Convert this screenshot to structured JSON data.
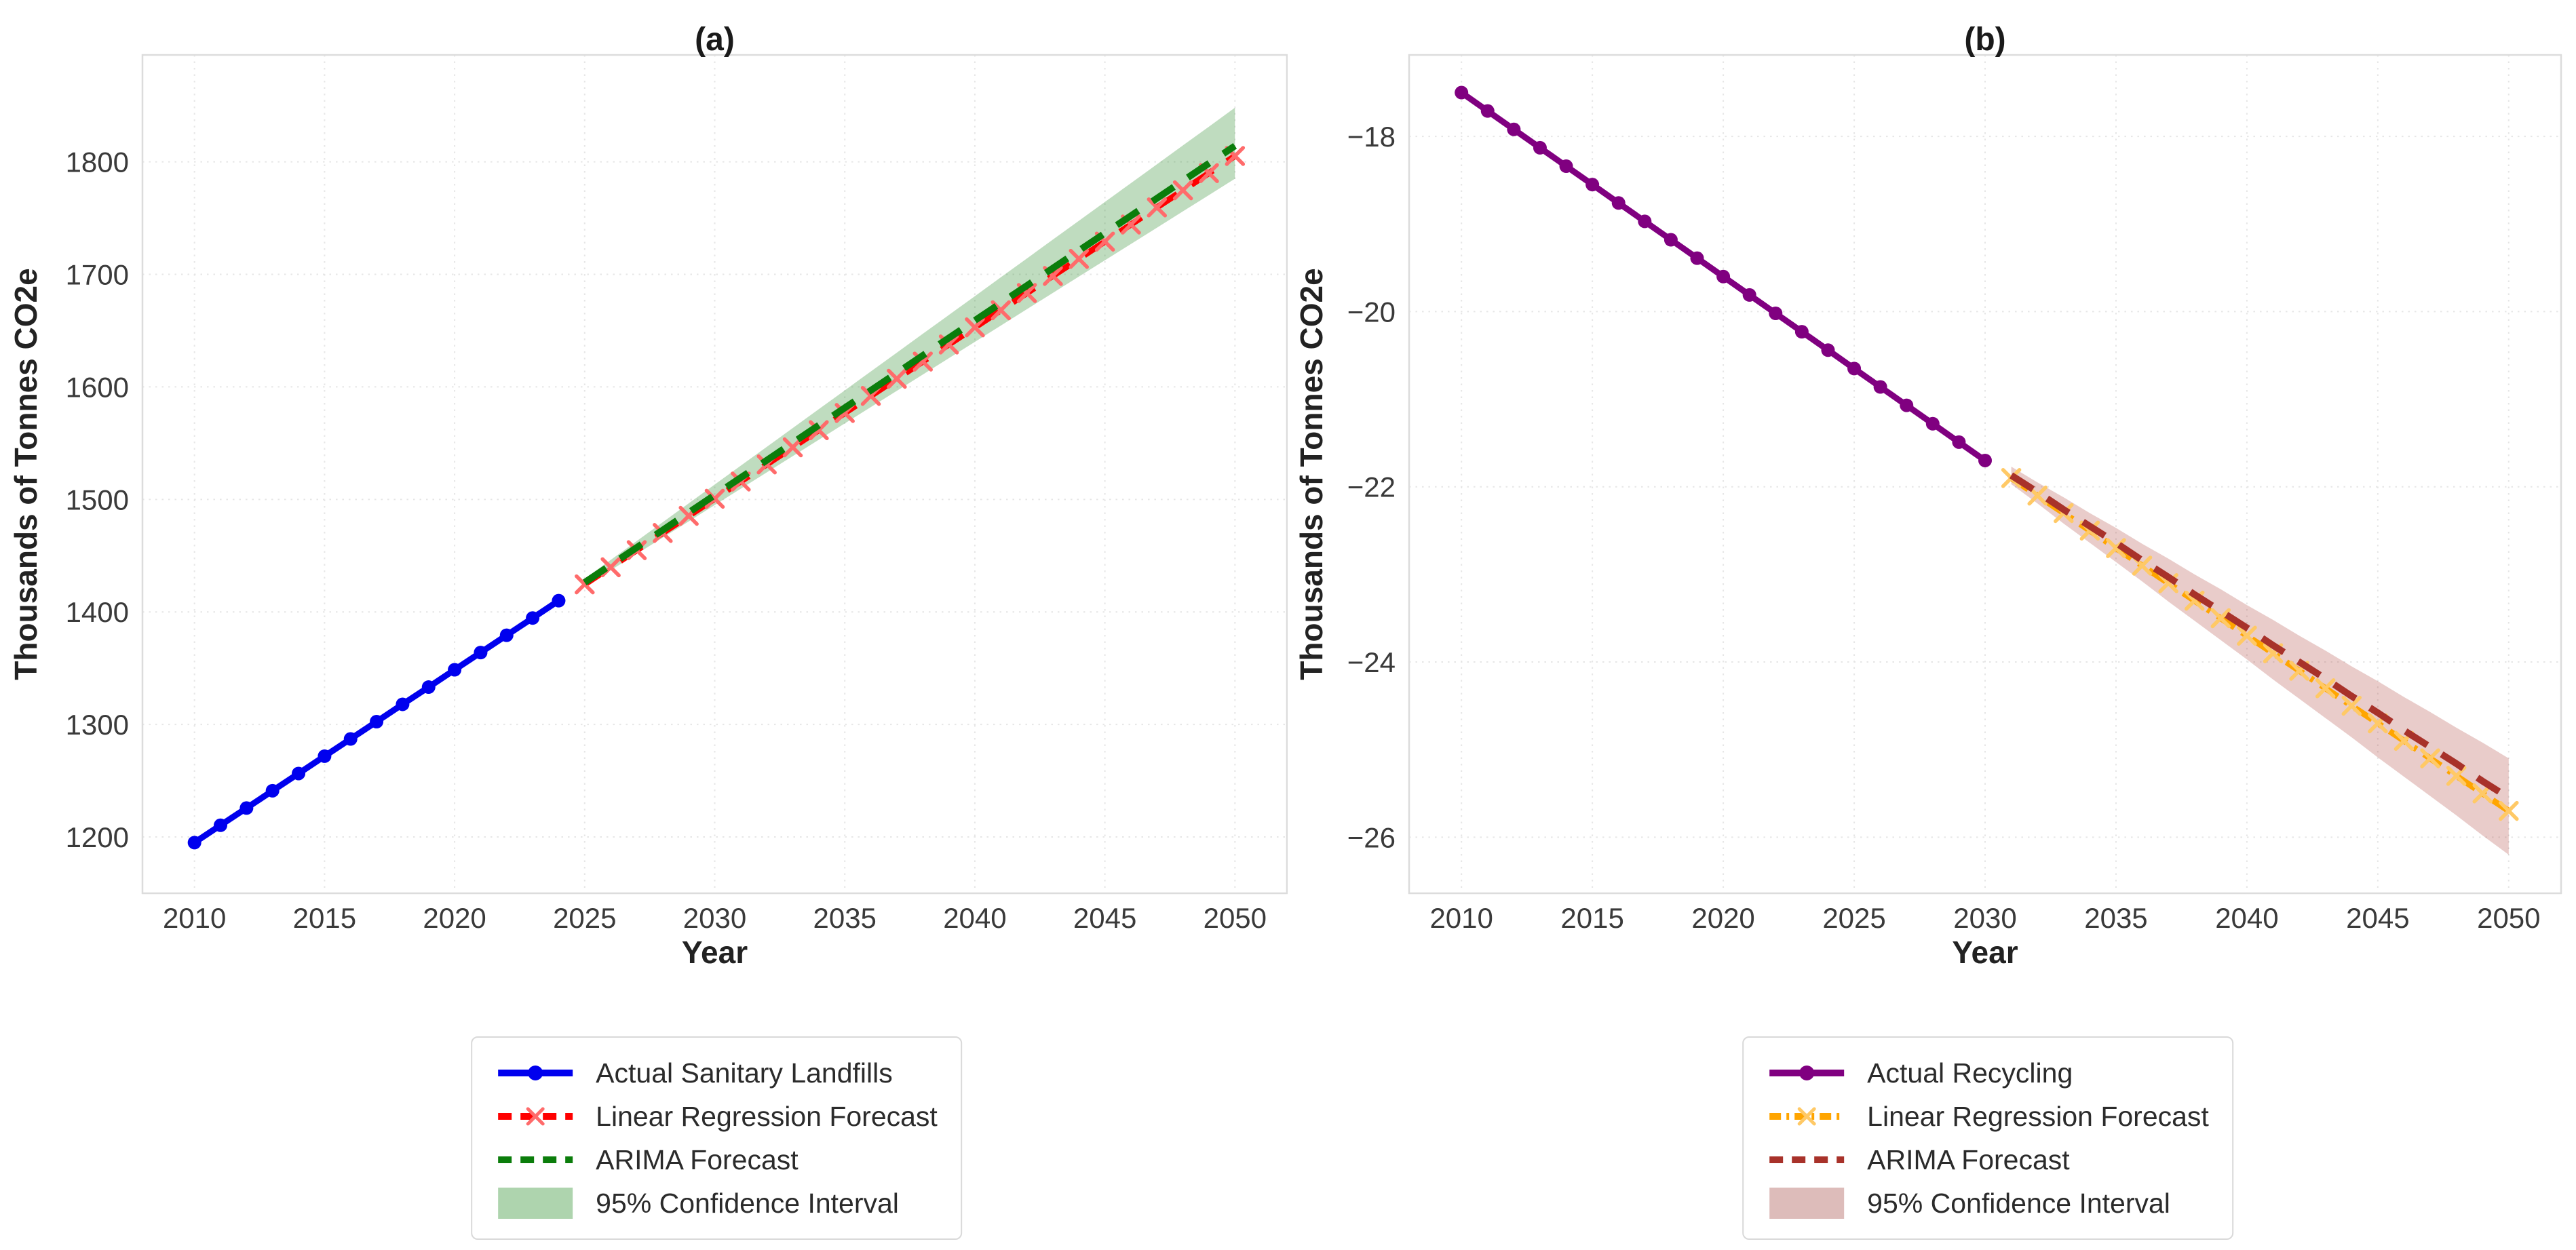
{
  "figure": {
    "background": "#ffffff",
    "grid_color": "#e6e6e6",
    "spine_color": "#dcdcdc",
    "title_color": "#1a1a1a",
    "tick_color": "#3a3a3a",
    "label_color": "#222222"
  },
  "chart_data": [
    {
      "type": "line",
      "title": "(a)",
      "xlabel": "Year",
      "ylabel": "Thousands of Tonnes CO2e",
      "xlim": [
        2008,
        2052
      ],
      "ylim": [
        1150,
        1895
      ],
      "grid": "dotted",
      "legend_position": "below-center",
      "xticks": [
        2010,
        2015,
        2020,
        2025,
        2030,
        2035,
        2040,
        2045,
        2050
      ],
      "yticks": [
        {
          "v": 1200,
          "label": "1200"
        },
        {
          "v": 1300,
          "label": "1300"
        },
        {
          "v": 1400,
          "label": "1400"
        },
        {
          "v": 1500,
          "label": "1500"
        },
        {
          "v": 1600,
          "label": "1600"
        },
        {
          "v": 1700,
          "label": "1700"
        },
        {
          "v": 1800,
          "label": "1800"
        }
      ],
      "series": [
        {
          "name": "Actual Sanitary Landfills",
          "color": "#0000ee",
          "style": "solid",
          "marker": "circle",
          "marker_color": "#0000ee",
          "x": [
            2010,
            2011,
            2012,
            2013,
            2014,
            2015,
            2016,
            2017,
            2018,
            2019,
            2020,
            2021,
            2022,
            2023,
            2024
          ],
          "y": [
            1195.0,
            1210.4,
            1225.7,
            1241.1,
            1256.4,
            1271.8,
            1287.1,
            1302.5,
            1317.9,
            1333.2,
            1348.6,
            1363.9,
            1379.3,
            1394.6,
            1410.0
          ]
        },
        {
          "name": "Linear Regression Forecast",
          "color": "#ff0000",
          "style": "dashed",
          "marker": "x",
          "marker_color": "#ff6b6b",
          "x": [
            2025,
            2026,
            2027,
            2028,
            2029,
            2030,
            2031,
            2032,
            2033,
            2034,
            2035,
            2036,
            2037,
            2038,
            2039,
            2040,
            2041,
            2042,
            2043,
            2044,
            2045,
            2046,
            2047,
            2048,
            2049,
            2050
          ],
          "y": [
            1424.5,
            1439.7,
            1454.9,
            1470.2,
            1485.4,
            1500.6,
            1515.9,
            1531.1,
            1546.3,
            1561.5,
            1576.8,
            1592.0,
            1607.2,
            1622.5,
            1637.7,
            1652.9,
            1668.1,
            1683.4,
            1698.6,
            1713.8,
            1729.1,
            1744.3,
            1759.5,
            1774.7,
            1790.0,
            1805.2
          ]
        },
        {
          "name": "ARIMA Forecast",
          "color": "#0b7d0b",
          "style": "dashed",
          "marker": null,
          "marker_color": null,
          "x": [
            2025,
            2026,
            2027,
            2028,
            2029,
            2030,
            2031,
            2032,
            2033,
            2034,
            2035,
            2036,
            2037,
            2038,
            2039,
            2040,
            2041,
            2042,
            2043,
            2044,
            2045,
            2046,
            2047,
            2048,
            2049,
            2050
          ],
          "y": [
            1426.2,
            1441.7,
            1457.2,
            1472.7,
            1488.3,
            1503.8,
            1519.3,
            1534.8,
            1550.3,
            1565.9,
            1581.4,
            1596.9,
            1612.4,
            1627.9,
            1643.5,
            1659.0,
            1674.5,
            1690.0,
            1705.5,
            1721.1,
            1736.6,
            1752.1,
            1767.6,
            1783.1,
            1798.7,
            1814.2
          ]
        }
      ],
      "band": {
        "name": "95% Confidence Interval",
        "fill": "rgba(44,138,44,0.30)",
        "legend_fill": "#aed4ae",
        "x": [
          2025,
          2026,
          2027,
          2028,
          2029,
          2030,
          2031,
          2032,
          2033,
          2034,
          2035,
          2036,
          2037,
          2038,
          2039,
          2040,
          2041,
          2042,
          2043,
          2044,
          2045,
          2046,
          2047,
          2048,
          2049,
          2050
        ],
        "lower": [
          1422.5,
          1437.0,
          1451.5,
          1466.0,
          1480.5,
          1495.0,
          1509.5,
          1524.0,
          1538.5,
          1553.0,
          1567.5,
          1582.0,
          1596.5,
          1611.0,
          1625.5,
          1640.0,
          1654.5,
          1669.0,
          1683.5,
          1698.0,
          1712.5,
          1727.0,
          1741.5,
          1756.0,
          1770.5,
          1785.0
        ],
        "upper": [
          1429.5,
          1446.2,
          1463.0,
          1479.7,
          1496.5,
          1513.2,
          1530.0,
          1546.7,
          1563.4,
          1580.2,
          1596.9,
          1613.7,
          1630.4,
          1647.2,
          1663.9,
          1680.6,
          1697.4,
          1714.1,
          1730.9,
          1747.6,
          1764.4,
          1781.1,
          1797.8,
          1814.6,
          1831.3,
          1848.1
        ]
      }
    },
    {
      "type": "line",
      "title": "(b)",
      "xlabel": "Year",
      "ylabel": "Thousands of Tonnes CO2e",
      "xlim": [
        2008,
        2052
      ],
      "ylim": [
        -26.64,
        -17.07
      ],
      "grid": "dotted",
      "legend_position": "below-center",
      "xticks": [
        2010,
        2015,
        2020,
        2025,
        2030,
        2035,
        2040,
        2045,
        2050
      ],
      "yticks": [
        {
          "v": -18,
          "label": "−18"
        },
        {
          "v": -20,
          "label": "−20"
        },
        {
          "v": -22,
          "label": "−22"
        },
        {
          "v": -24,
          "label": "−24"
        },
        {
          "v": -26,
          "label": "−26"
        }
      ],
      "series": [
        {
          "name": "Actual Recycling",
          "color": "#800080",
          "style": "solid",
          "marker": "circle",
          "marker_color": "#800080",
          "x": [
            2010,
            2011,
            2012,
            2013,
            2014,
            2015,
            2016,
            2017,
            2018,
            2019,
            2020,
            2021,
            2022,
            2023,
            2024,
            2025,
            2026,
            2027,
            2028,
            2029,
            2030
          ],
          "y": [
            -17.5,
            -17.71,
            -17.92,
            -18.13,
            -18.34,
            -18.55,
            -18.76,
            -18.97,
            -19.18,
            -19.39,
            -19.6,
            -19.81,
            -20.02,
            -20.23,
            -20.44,
            -20.65,
            -20.86,
            -21.07,
            -21.28,
            -21.49,
            -21.7
          ]
        },
        {
          "name": "Linear Regression Forecast",
          "color": "#ffa500",
          "style": "dashdot",
          "marker": "x",
          "marker_color": "#ffc966",
          "x": [
            2031,
            2032,
            2033,
            2034,
            2035,
            2036,
            2037,
            2038,
            2039,
            2040,
            2041,
            2042,
            2043,
            2044,
            2045,
            2046,
            2047,
            2048,
            2049,
            2050
          ],
          "y": [
            -21.9,
            -22.1,
            -22.3,
            -22.5,
            -22.7,
            -22.9,
            -23.1,
            -23.3,
            -23.5,
            -23.7,
            -23.9,
            -24.1,
            -24.3,
            -24.5,
            -24.7,
            -24.9,
            -25.1,
            -25.3,
            -25.5,
            -25.7
          ]
        },
        {
          "name": "ARIMA Forecast",
          "color": "#a8322a",
          "style": "dashed",
          "marker": null,
          "marker_color": null,
          "x": [
            2031,
            2032,
            2033,
            2034,
            2035,
            2036,
            2037,
            2038,
            2039,
            2040,
            2041,
            2042,
            2043,
            2044,
            2045,
            2046,
            2047,
            2048,
            2049,
            2050
          ],
          "y": [
            -21.87,
            -22.06,
            -22.26,
            -22.45,
            -22.64,
            -22.84,
            -23.03,
            -23.23,
            -23.42,
            -23.61,
            -23.81,
            -24.0,
            -24.19,
            -24.39,
            -24.58,
            -24.78,
            -24.97,
            -25.16,
            -25.36,
            -25.55
          ]
        }
      ],
      "band": {
        "name": "95% Confidence Interval",
        "fill": "rgba(168,50,42,0.25)",
        "legend_fill": "#ddbcba",
        "x": [
          2031,
          2032,
          2033,
          2034,
          2035,
          2036,
          2037,
          2038,
          2039,
          2040,
          2041,
          2042,
          2043,
          2044,
          2045,
          2046,
          2047,
          2048,
          2049,
          2050
        ],
        "lower": [
          -21.97,
          -22.19,
          -22.42,
          -22.64,
          -22.86,
          -23.08,
          -23.31,
          -23.53,
          -23.75,
          -23.97,
          -24.2,
          -24.42,
          -24.64,
          -24.86,
          -25.09,
          -25.31,
          -25.53,
          -25.75,
          -25.98,
          -26.2
        ],
        "upper": [
          -21.77,
          -21.95,
          -22.12,
          -22.3,
          -22.47,
          -22.65,
          -22.82,
          -23.0,
          -23.17,
          -23.35,
          -23.52,
          -23.7,
          -23.87,
          -24.05,
          -24.22,
          -24.4,
          -24.57,
          -24.75,
          -24.92,
          -25.1
        ]
      }
    }
  ]
}
